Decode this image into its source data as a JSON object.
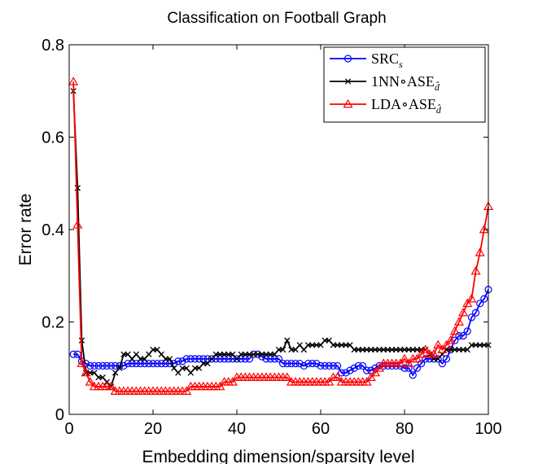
{
  "chart_data": {
    "type": "line",
    "title": "Classification on Football Graph",
    "xlabel": "Embedding dimension/sparsity level",
    "ylabel": "Error rate",
    "xlim": [
      0,
      100
    ],
    "ylim": [
      0,
      0.8
    ],
    "xticks": [
      0,
      20,
      40,
      60,
      80,
      100
    ],
    "yticks": [
      0,
      0.2,
      0.4,
      0.6,
      0.8
    ],
    "xtick_labels": [
      "0",
      "20",
      "40",
      "60",
      "80",
      "100"
    ],
    "ytick_labels": [
      "0",
      "0.2",
      "0.4",
      "0.6",
      "0.8"
    ],
    "grid": false,
    "legend_position": "top-right",
    "series": [
      {
        "name": "SRC",
        "name_subscript": "s",
        "color": "#0000ff",
        "marker": "circle",
        "x": [
          1,
          2,
          3,
          4,
          5,
          6,
          7,
          8,
          9,
          10,
          11,
          12,
          13,
          14,
          15,
          16,
          17,
          18,
          19,
          20,
          21,
          22,
          23,
          24,
          25,
          26,
          27,
          28,
          29,
          30,
          31,
          32,
          33,
          34,
          35,
          36,
          37,
          38,
          39,
          40,
          41,
          42,
          43,
          44,
          45,
          46,
          47,
          48,
          49,
          50,
          51,
          52,
          53,
          54,
          55,
          56,
          57,
          58,
          59,
          60,
          61,
          62,
          63,
          64,
          65,
          66,
          67,
          68,
          69,
          70,
          71,
          72,
          73,
          74,
          75,
          76,
          77,
          78,
          79,
          80,
          81,
          82,
          83,
          84,
          85,
          86,
          87,
          88,
          89,
          90,
          91,
          92,
          93,
          94,
          95,
          96,
          97,
          98,
          99,
          100
        ],
        "y": [
          0.13,
          0.13,
          0.115,
          0.11,
          0.105,
          0.105,
          0.105,
          0.105,
          0.105,
          0.105,
          0.105,
          0.105,
          0.105,
          0.11,
          0.11,
          0.11,
          0.11,
          0.11,
          0.11,
          0.11,
          0.11,
          0.11,
          0.11,
          0.11,
          0.11,
          0.115,
          0.115,
          0.12,
          0.12,
          0.12,
          0.12,
          0.12,
          0.12,
          0.12,
          0.12,
          0.12,
          0.12,
          0.12,
          0.12,
          0.12,
          0.12,
          0.12,
          0.12,
          0.13,
          0.13,
          0.125,
          0.12,
          0.12,
          0.12,
          0.12,
          0.11,
          0.11,
          0.11,
          0.11,
          0.11,
          0.105,
          0.11,
          0.11,
          0.11,
          0.105,
          0.105,
          0.105,
          0.105,
          0.105,
          0.09,
          0.09,
          0.095,
          0.1,
          0.105,
          0.105,
          0.095,
          0.095,
          0.1,
          0.105,
          0.105,
          0.105,
          0.105,
          0.105,
          0.105,
          0.1,
          0.1,
          0.085,
          0.1,
          0.11,
          0.12,
          0.12,
          0.12,
          0.12,
          0.11,
          0.12,
          0.14,
          0.16,
          0.17,
          0.17,
          0.18,
          0.21,
          0.22,
          0.24,
          0.25,
          0.27
        ]
      },
      {
        "name": "1NN∘ASE",
        "name_subscript": "d̂",
        "color": "#000000",
        "marker": "x",
        "x": [
          1,
          2,
          3,
          4,
          5,
          6,
          7,
          8,
          9,
          10,
          11,
          12,
          13,
          14,
          15,
          16,
          17,
          18,
          19,
          20,
          21,
          22,
          23,
          24,
          25,
          26,
          27,
          28,
          29,
          30,
          31,
          32,
          33,
          34,
          35,
          36,
          37,
          38,
          39,
          40,
          41,
          42,
          43,
          44,
          45,
          46,
          47,
          48,
          49,
          50,
          51,
          52,
          53,
          54,
          55,
          56,
          57,
          58,
          59,
          60,
          61,
          62,
          63,
          64,
          65,
          66,
          67,
          68,
          69,
          70,
          71,
          72,
          73,
          74,
          75,
          76,
          77,
          78,
          79,
          80,
          81,
          82,
          83,
          84,
          85,
          86,
          87,
          88,
          89,
          90,
          91,
          92,
          93,
          94,
          95,
          96,
          97,
          98,
          99,
          100
        ],
        "y": [
          0.7,
          0.49,
          0.16,
          0.09,
          0.09,
          0.09,
          0.08,
          0.08,
          0.07,
          0.06,
          0.09,
          0.1,
          0.13,
          0.13,
          0.12,
          0.13,
          0.12,
          0.12,
          0.13,
          0.14,
          0.14,
          0.13,
          0.12,
          0.12,
          0.1,
          0.09,
          0.1,
          0.1,
          0.09,
          0.1,
          0.1,
          0.11,
          0.11,
          0.12,
          0.13,
          0.13,
          0.13,
          0.13,
          0.13,
          0.12,
          0.13,
          0.13,
          0.13,
          0.13,
          0.13,
          0.13,
          0.13,
          0.13,
          0.13,
          0.14,
          0.14,
          0.16,
          0.14,
          0.14,
          0.15,
          0.14,
          0.15,
          0.15,
          0.15,
          0.15,
          0.16,
          0.16,
          0.15,
          0.15,
          0.15,
          0.15,
          0.15,
          0.14,
          0.14,
          0.14,
          0.14,
          0.14,
          0.14,
          0.14,
          0.14,
          0.14,
          0.14,
          0.14,
          0.14,
          0.14,
          0.14,
          0.14,
          0.14,
          0.14,
          0.14,
          0.13,
          0.12,
          0.12,
          0.13,
          0.14,
          0.14,
          0.14,
          0.14,
          0.14,
          0.14,
          0.15,
          0.15,
          0.15,
          0.15,
          0.15
        ]
      },
      {
        "name": "LDA∘ASE",
        "name_subscript": "d̂",
        "color": "#ff0000",
        "marker": "triangle",
        "x": [
          1,
          2,
          3,
          4,
          5,
          6,
          7,
          8,
          9,
          10,
          11,
          12,
          13,
          14,
          15,
          16,
          17,
          18,
          19,
          20,
          21,
          22,
          23,
          24,
          25,
          26,
          27,
          28,
          29,
          30,
          31,
          32,
          33,
          34,
          35,
          36,
          37,
          38,
          39,
          40,
          41,
          42,
          43,
          44,
          45,
          46,
          47,
          48,
          49,
          50,
          51,
          52,
          53,
          54,
          55,
          56,
          57,
          58,
          59,
          60,
          61,
          62,
          63,
          64,
          65,
          66,
          67,
          68,
          69,
          70,
          71,
          72,
          73,
          74,
          75,
          76,
          77,
          78,
          79,
          80,
          81,
          82,
          83,
          84,
          85,
          86,
          87,
          88,
          89,
          90,
          91,
          92,
          93,
          94,
          95,
          96,
          97,
          98,
          99,
          100
        ],
        "y": [
          0.72,
          0.41,
          0.11,
          0.09,
          0.07,
          0.06,
          0.06,
          0.06,
          0.06,
          0.06,
          0.05,
          0.05,
          0.05,
          0.05,
          0.05,
          0.05,
          0.05,
          0.05,
          0.05,
          0.05,
          0.05,
          0.05,
          0.05,
          0.05,
          0.05,
          0.05,
          0.05,
          0.05,
          0.06,
          0.06,
          0.06,
          0.06,
          0.06,
          0.06,
          0.06,
          0.06,
          0.07,
          0.07,
          0.07,
          0.08,
          0.08,
          0.08,
          0.08,
          0.08,
          0.08,
          0.08,
          0.08,
          0.08,
          0.08,
          0.08,
          0.08,
          0.08,
          0.07,
          0.07,
          0.07,
          0.07,
          0.07,
          0.07,
          0.07,
          0.07,
          0.07,
          0.07,
          0.08,
          0.08,
          0.07,
          0.07,
          0.07,
          0.07,
          0.07,
          0.07,
          0.07,
          0.08,
          0.09,
          0.1,
          0.11,
          0.11,
          0.11,
          0.11,
          0.11,
          0.12,
          0.11,
          0.12,
          0.12,
          0.13,
          0.14,
          0.13,
          0.13,
          0.15,
          0.14,
          0.15,
          0.16,
          0.18,
          0.2,
          0.22,
          0.24,
          0.25,
          0.31,
          0.35,
          0.4,
          0.45
        ]
      }
    ]
  }
}
